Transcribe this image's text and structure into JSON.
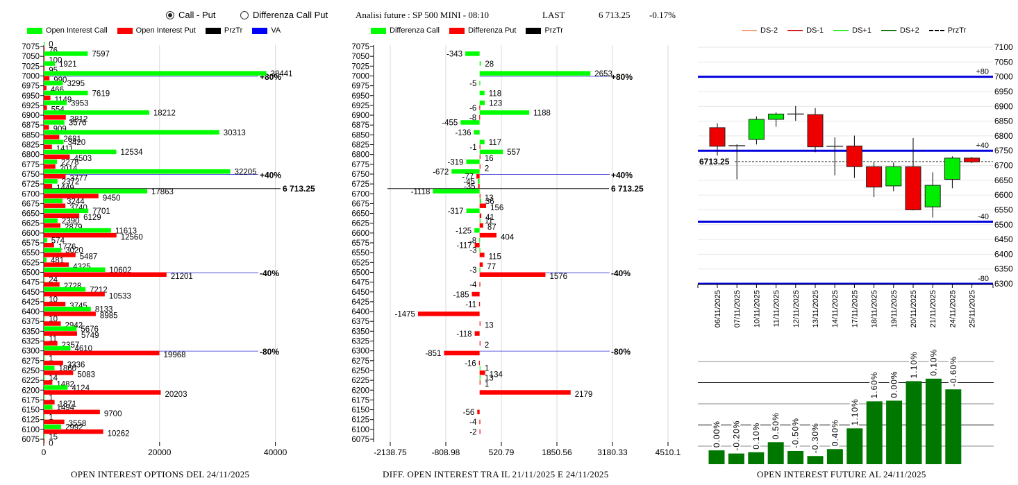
{
  "mode_options": [
    {
      "label": "Call - Put",
      "selected": true
    },
    {
      "label": "Differenza Call Put",
      "selected": false
    }
  ],
  "header": {
    "title": "Analisi future : SP 500 MINI - 08:10",
    "last_label": "LAST",
    "last_value": "6 713.25",
    "change": "-0.17%"
  },
  "colors": {
    "call": "#00ff00",
    "put": "#ff0000",
    "przTr": "#000000",
    "va": "#0000ff",
    "ds_minus2": "#f4a07a",
    "ds_minus1": "#d22020",
    "ds_plus1": "#33ee33",
    "ds_plus2": "#1a7a1a",
    "future_bar": "#007800"
  },
  "legend_oi": [
    {
      "label": "Open Interest Call",
      "color": "#00ff00"
    },
    {
      "label": "Open Interest Put",
      "color": "#ff0000"
    },
    {
      "label": "PrzTr",
      "color": "#000000"
    },
    {
      "label": "VA",
      "color": "#0000ff"
    }
  ],
  "legend_diff": [
    {
      "label": "Differenza Call",
      "color": "#00ff00"
    },
    {
      "label": "Differenza Put",
      "color": "#ff0000"
    },
    {
      "label": "PrzTr",
      "color": "#000000"
    }
  ],
  "legend_candle": [
    {
      "label": "DS-2",
      "color": "#f4a07a",
      "style": "line"
    },
    {
      "label": "DS-1",
      "color": "#d22020",
      "style": "line"
    },
    {
      "label": "DS+1",
      "color": "#33ee33",
      "style": "line"
    },
    {
      "label": "DS+2",
      "color": "#1a7a1a",
      "style": "line"
    },
    {
      "label": "PrzTr",
      "color": "#000000",
      "style": "dash"
    }
  ],
  "captions": {
    "oi": "OPEN INTEREST OPTIONS DEL 24/11/2025",
    "diff": "DIFF. OPEN INTEREST TRA IL 21/11/2025 E 24/11/2025",
    "future": "OPEN INTEREST FUTURE AL 24/11/2025"
  },
  "chart_data": [
    {
      "type": "bar",
      "orientation": "horizontal",
      "title": "OPEN INTEREST OPTIONS DEL 24/11/2025",
      "categories": [
        7075,
        7050,
        7025,
        7000,
        6975,
        6950,
        6925,
        6900,
        6875,
        6850,
        6825,
        6800,
        6775,
        6750,
        6725,
        6700,
        6675,
        6650,
        6625,
        6600,
        6575,
        6550,
        6525,
        6500,
        6475,
        6450,
        6425,
        6400,
        6375,
        6350,
        6325,
        6300,
        6275,
        6250,
        6225,
        6200,
        6175,
        6150,
        6125,
        6100,
        6075
      ],
      "series": [
        {
          "name": "Open Interest Call",
          "values": [
            0,
            7597,
            1921,
            38441,
            3295,
            7619,
            3953,
            18212,
            3576,
            30313,
            3420,
            12534,
            2278,
            32205,
            2372,
            17863,
            3244,
            7701,
            2390,
            11613,
            574,
            3020,
            481,
            10602,
            24,
            7212,
            10,
            8133,
            10,
            5676,
            11,
            4610,
            1,
            1860,
            14,
            4124,
            1,
            1494,
            1,
            2992,
            15
          ]
        },
        {
          "name": "Open Interest Put",
          "values": [
            76,
            100,
            95,
            990,
            466,
            1149,
            554,
            3812,
            909,
            2681,
            1411,
            4503,
            2014,
            3777,
            1449,
            9450,
            3740,
            6129,
            2879,
            12560,
            1776,
            5487,
            4325,
            21201,
            2728,
            10533,
            3745,
            8985,
            2942,
            5749,
            2357,
            19968,
            3336,
            5083,
            1482,
            20203,
            1871,
            9700,
            3558,
            10262,
            0
          ]
        }
      ],
      "xlim": [
        0,
        50000
      ],
      "xticks": [
        0,
        20000,
        40000
      ],
      "reference_lines": [
        {
          "strike": 7000,
          "label": "+80%"
        },
        {
          "strike": 6750,
          "label": "+40%"
        },
        {
          "strike": 6500,
          "label": "-40%"
        },
        {
          "strike": 6300,
          "label": "-80%"
        }
      ],
      "price_line": {
        "value": 6713.25,
        "label": "6 713.25"
      }
    },
    {
      "type": "bar",
      "orientation": "horizontal",
      "title": "DIFF. OPEN INTEREST TRA IL 21/11/2025 E 24/11/2025",
      "categories": [
        7075,
        7050,
        7025,
        7000,
        6975,
        6950,
        6925,
        6900,
        6875,
        6850,
        6825,
        6800,
        6775,
        6750,
        6725,
        6700,
        6675,
        6650,
        6625,
        6600,
        6575,
        6550,
        6525,
        6500,
        6475,
        6450,
        6425,
        6400,
        6375,
        6350,
        6325,
        6300,
        6275,
        6250,
        6225,
        6200,
        6175,
        6150,
        6125,
        6100,
        6075
      ],
      "series": [
        {
          "name": "Differenza Call",
          "values": [
            null,
            -343,
            28,
            2653,
            -5,
            118,
            123,
            1188,
            -455,
            -136,
            117,
            557,
            -319,
            -672,
            -45,
            -1118,
            36,
            -317,
            11,
            -125,
            -8,
            -3,
            null,
            -3,
            null,
            null,
            null,
            null,
            null,
            null,
            null,
            null,
            null,
            1,
            13,
            null,
            null,
            null,
            null,
            null,
            null
          ]
        },
        {
          "name": "Differenza Put",
          "values": [
            null,
            null,
            null,
            null,
            null,
            null,
            -6,
            -8,
            null,
            null,
            -1,
            16,
            2,
            -77,
            -35,
            13,
            156,
            41,
            87,
            404,
            -117,
            115,
            77,
            1576,
            -4,
            -185,
            -11,
            -1475,
            13,
            -118,
            2,
            -851,
            -16,
            134,
            1,
            2179,
            null,
            -56,
            -4,
            -2,
            null
          ]
        }
      ],
      "xlim": [
        -2138.75,
        4510.1
      ],
      "xticks": [
        -2138.75,
        -808.98,
        520.79,
        1850.56,
        3180.33,
        4510.1
      ],
      "reference_lines": [
        {
          "strike": 7000,
          "label": "+80%"
        },
        {
          "strike": 6750,
          "label": "+40%"
        },
        {
          "strike": 6500,
          "label": "-40%"
        },
        {
          "strike": 6300,
          "label": "-80%"
        }
      ],
      "price_line": {
        "value": 6713.25,
        "label": "6 713.25"
      }
    },
    {
      "type": "candlestick",
      "dates": [
        "06/11/2025",
        "07/11/2025",
        "10/11/2025",
        "11/11/2025",
        "12/11/2025",
        "13/11/2025",
        "14/11/2025",
        "17/11/2025",
        "18/11/2025",
        "19/11/2025",
        "20/11/2025",
        "21/11/2025",
        "24/11/2025",
        "25/11/2025"
      ],
      "ohlc": [
        {
          "open": 6828,
          "high": 6843,
          "low": 6733,
          "close": 6765
        },
        {
          "open": 6767,
          "high": 6772,
          "low": 6653,
          "close": 6766
        },
        {
          "open": 6788,
          "high": 6866,
          "low": 6771,
          "close": 6856
        },
        {
          "open": 6856,
          "high": 6880,
          "low": 6831,
          "close": 6874
        },
        {
          "open": 6874,
          "high": 6901,
          "low": 6851,
          "close": 6874
        },
        {
          "open": 6872,
          "high": 6894,
          "low": 6745,
          "close": 6763
        },
        {
          "open": 6765,
          "high": 6795,
          "low": 6667,
          "close": 6765
        },
        {
          "open": 6766,
          "high": 6801,
          "low": 6658,
          "close": 6696
        },
        {
          "open": 6696,
          "high": 6711,
          "low": 6593,
          "close": 6627
        },
        {
          "open": 6631,
          "high": 6710,
          "low": 6613,
          "close": 6696
        },
        {
          "open": 6696,
          "high": 6793,
          "low": 6548,
          "close": 6550
        },
        {
          "open": 6560,
          "high": 6677,
          "low": 6524,
          "close": 6633
        },
        {
          "open": 6653,
          "high": 6731,
          "low": 6623,
          "close": 6725
        },
        {
          "open": 6725,
          "high": 6729,
          "low": 6708,
          "close": 6712
        }
      ],
      "ylim": [
        6300,
        7100
      ],
      "yticks": [
        6300,
        6350,
        6400,
        6450,
        6500,
        6550,
        6600,
        6650,
        6700,
        6750,
        6800,
        6850,
        6900,
        6950,
        7000,
        7050,
        7100
      ],
      "bands": [
        {
          "value": 7000,
          "label": "+80"
        },
        {
          "value": 6750,
          "label": "+40"
        },
        {
          "value": 6510,
          "label": "-40"
        },
        {
          "value": 6300,
          "label": "-80"
        }
      ],
      "price_line": {
        "value": 6713.25,
        "label": "6713.25"
      }
    },
    {
      "type": "bar",
      "title": "OPEN INTEREST FUTURE AL 24/11/2025",
      "categories": [
        "06/11/2025",
        "07/11/2025",
        "10/11/2025",
        "11/11/2025",
        "12/11/2025",
        "13/11/2025",
        "14/11/2025",
        "17/11/2025",
        "18/11/2025",
        "19/11/2025",
        "20/11/2025",
        "21/11/2025",
        "24/11/2025"
      ],
      "values": [
        22,
        17,
        19,
        35,
        21,
        13,
        24,
        57,
        100,
        101,
        132,
        136,
        119
      ],
      "labels": [
        "0.00%",
        "-0.20%",
        "0.10%",
        "0.50%",
        "-0.50%",
        "-0.30%",
        "0.40%",
        "1.10%",
        "1.60%",
        "0.00%",
        "1.10%",
        "0.10%",
        "-0.60%"
      ],
      "ylim": [
        0,
        160
      ],
      "grid": true
    }
  ]
}
